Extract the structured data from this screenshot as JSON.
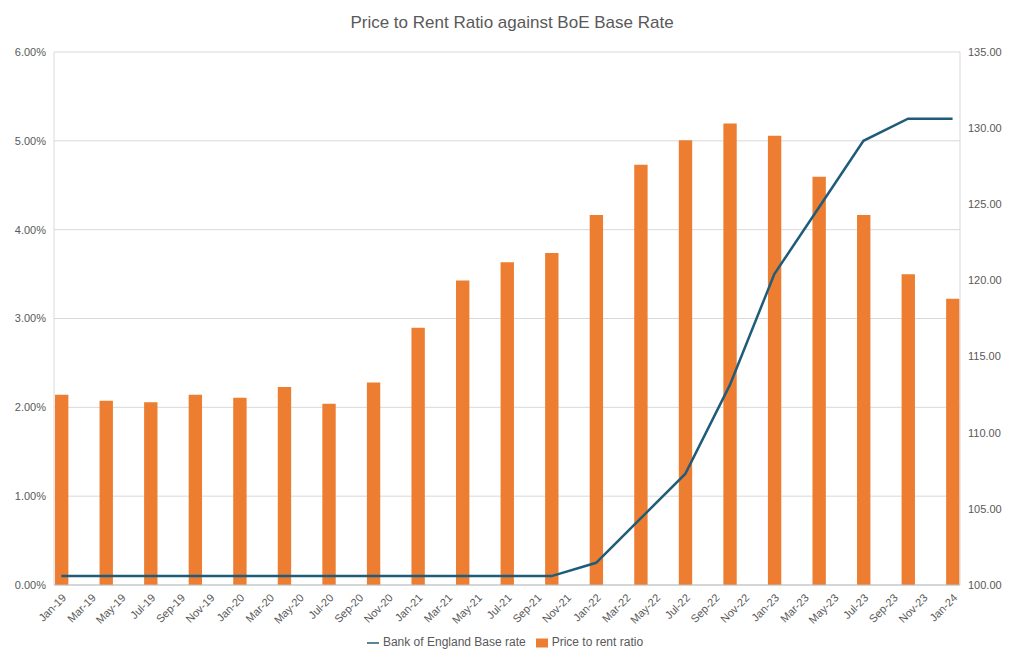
{
  "chart_data": {
    "type": "bar",
    "title": "Price to Rent Ratio against BoE Base Rate",
    "categories": [
      "Jan-19",
      null,
      "Mar-19",
      null,
      "May-19",
      null,
      "Jul-19",
      null,
      "Sep-19",
      null,
      "Nov-19",
      null,
      "Jan-20",
      null,
      "Mar-20",
      null,
      "May-20",
      null,
      "Jul-20",
      null,
      "Sep-20",
      null,
      "Nov-20",
      null,
      "Jan-21",
      null,
      "Mar-21",
      null,
      "May-21",
      null,
      "Jul-21",
      null,
      "Sep-21",
      null,
      "Nov-21",
      null,
      "Jan-22",
      null,
      "Mar-22",
      null,
      "May-22",
      null,
      "Jul-22",
      null,
      "Sep-22",
      null,
      "Nov-22",
      null,
      "Jan-23",
      null,
      "Mar-23",
      null,
      "May-23",
      null,
      "Jul-23",
      null,
      "Sep-23",
      null,
      "Nov-23",
      null,
      "Jan-24"
    ],
    "series": [
      {
        "name": "Price to rent ratio",
        "type": "bar",
        "color": "#ED7D31",
        "axis": "y2",
        "values": [
          112.5,
          null,
          null,
          112.1,
          null,
          null,
          112,
          null,
          null,
          112.5,
          null,
          null,
          112.3,
          null,
          null,
          113,
          null,
          null,
          111.9,
          null,
          null,
          113.3,
          null,
          null,
          116.9,
          null,
          null,
          120,
          null,
          null,
          121.2,
          null,
          null,
          121.8,
          null,
          null,
          124.3,
          null,
          null,
          127.6,
          null,
          null,
          129.2,
          null,
          null,
          130.3,
          null,
          null,
          129.5,
          null,
          null,
          126.8,
          null,
          null,
          124.3,
          null,
          null,
          120.4,
          null,
          null,
          118.8
        ]
      },
      {
        "name": "Bank of England Base rate",
        "type": "line",
        "color": "#1F5C7A",
        "values": [
          0.1,
          null,
          null,
          0.1,
          null,
          null,
          0.1,
          null,
          null,
          0.1,
          null,
          null,
          0.1,
          null,
          null,
          0.1,
          null,
          null,
          0.1,
          null,
          null,
          0.1,
          null,
          null,
          0.1,
          null,
          null,
          0.1,
          null,
          null,
          0.1,
          null,
          null,
          0.1,
          null,
          null,
          0.25,
          null,
          null,
          0.75,
          null,
          null,
          1.25,
          null,
          null,
          2.25,
          null,
          null,
          3.5,
          null,
          null,
          4.25,
          null,
          null,
          5,
          null,
          null,
          5.25,
          null,
          null,
          5.25
        ]
      }
    ],
    "ylim": [
      0,
      6
    ],
    "yticks": [
      {
        "value": 0,
        "label": "0.00%"
      },
      {
        "value": 1,
        "label": "1.00%"
      },
      {
        "value": 2,
        "label": "2.00%"
      },
      {
        "value": 3,
        "label": "3.00%"
      },
      {
        "value": 4,
        "label": "4.00%"
      },
      {
        "value": 5,
        "label": "5.00%"
      },
      {
        "value": 6,
        "label": "6.00%"
      }
    ],
    "y2lim": [
      100,
      135
    ],
    "y2ticks": [
      {
        "value": 100,
        "label": "100.00"
      },
      {
        "value": 105,
        "label": "105.00"
      },
      {
        "value": 110,
        "label": "110.00"
      },
      {
        "value": 115,
        "label": "115.00"
      },
      {
        "value": 120,
        "label": "120.00"
      },
      {
        "value": 125,
        "label": "125.00"
      },
      {
        "value": 130,
        "label": "130.00"
      },
      {
        "value": 135,
        "label": "135.00"
      }
    ],
    "grid": true,
    "legend": "bottom"
  }
}
